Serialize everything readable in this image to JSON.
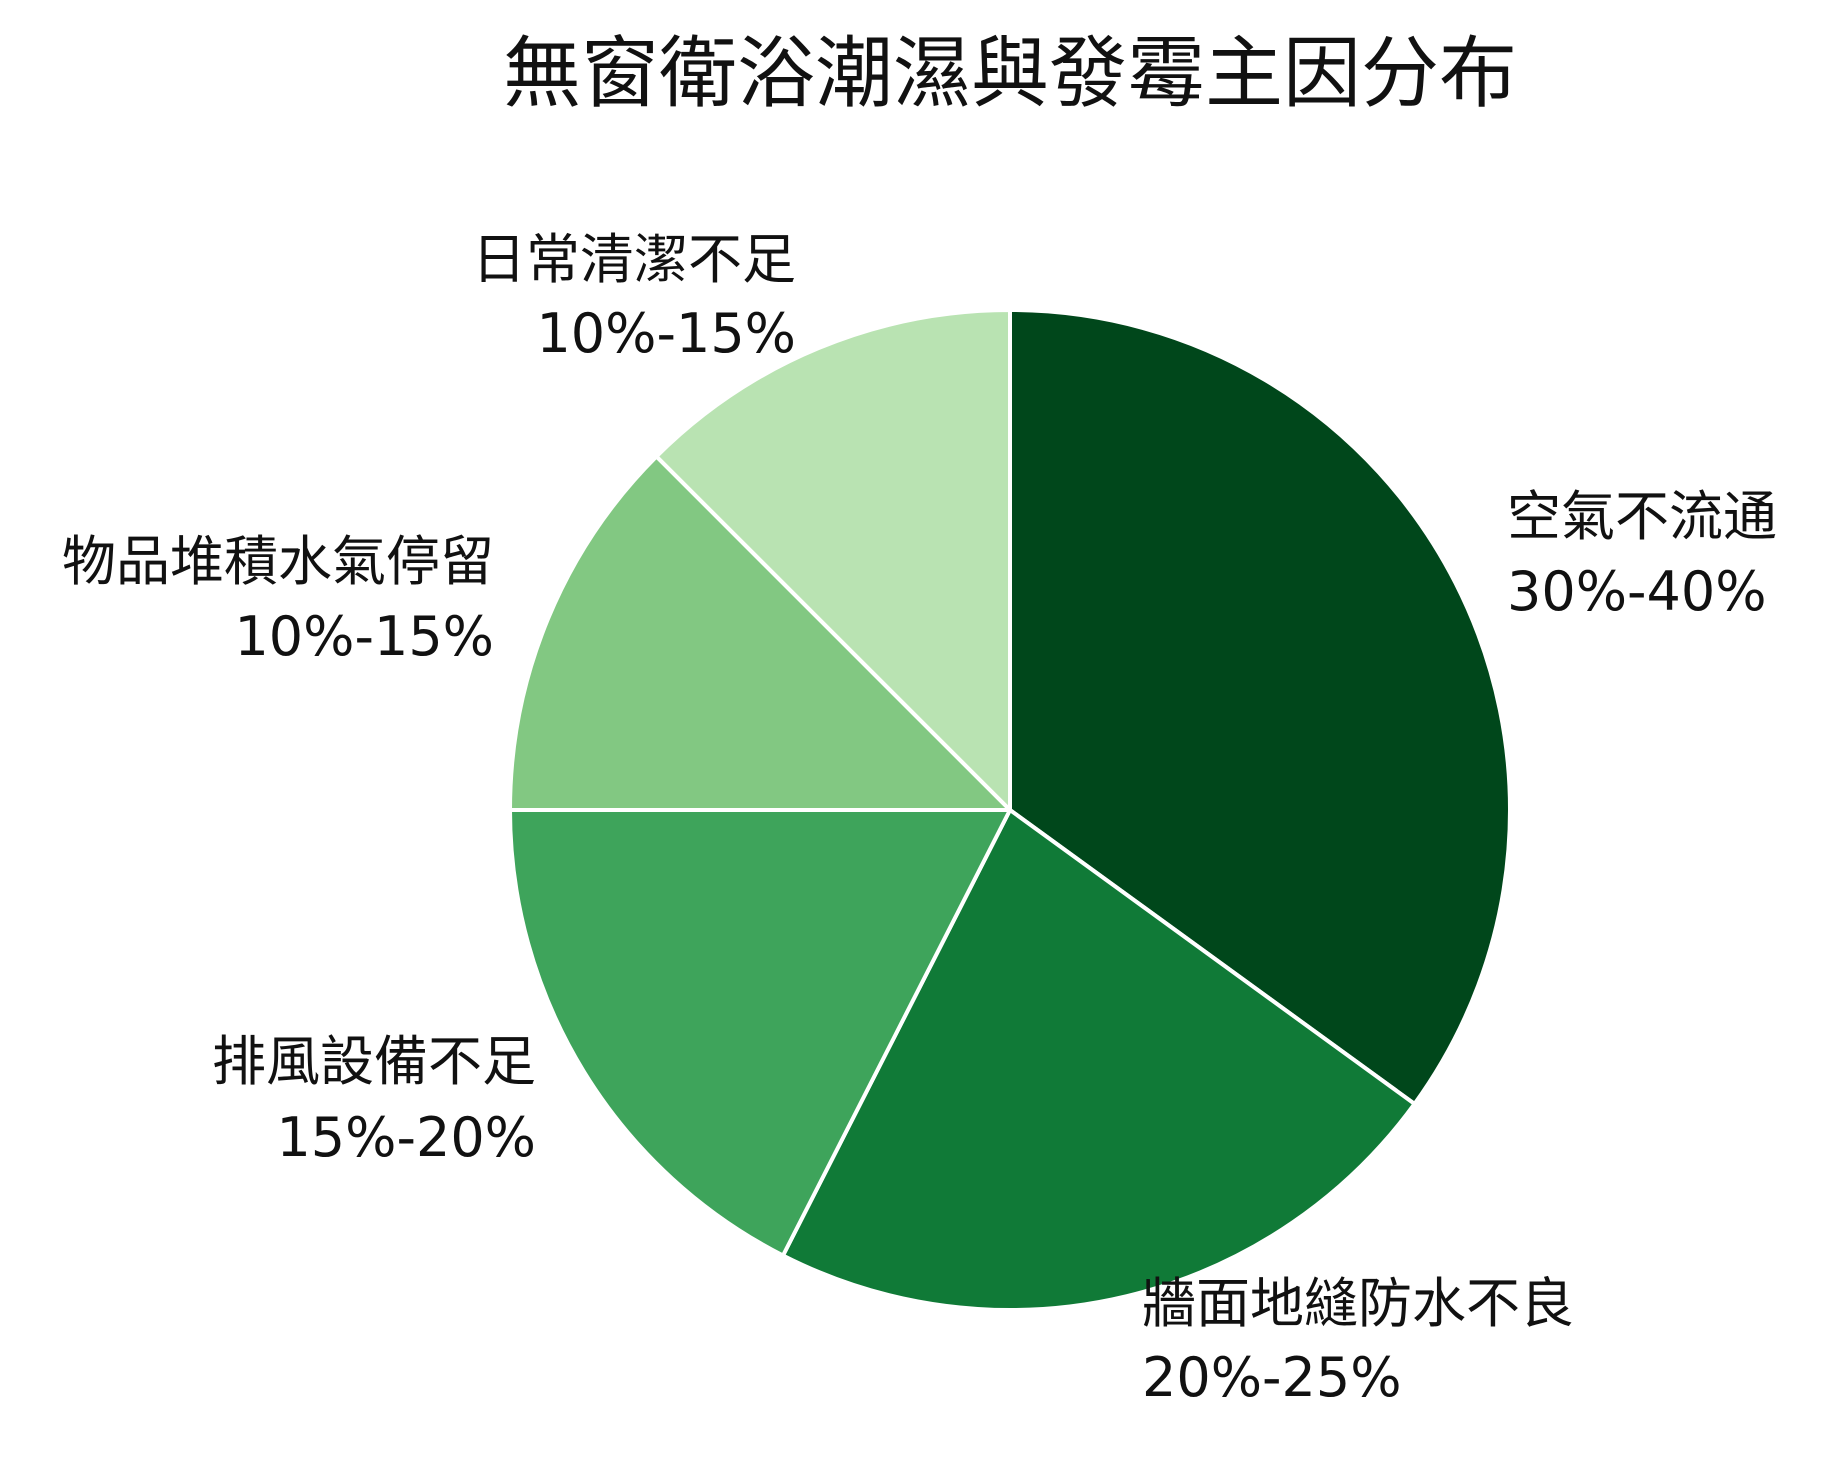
{
  "chart_data": {
    "type": "pie",
    "title": "無窗衛浴潮濕與發霉主因分布",
    "start_angle_deg": 0,
    "direction": "clockwise",
    "slices": [
      {
        "label": "空氣不流通",
        "range_text": "30%-40%",
        "value": 35,
        "color": "#00471b"
      },
      {
        "label": "牆面地縫防水不良",
        "range_text": "20%-25%",
        "value": 22.5,
        "color": "#107a37"
      },
      {
        "label": "排風設備不足",
        "range_text": "15%-20%",
        "value": 17.5,
        "color": "#3ea45b"
      },
      {
        "label": "物品堆積水氣停留",
        "range_text": "10%-15%",
        "value": 12.5,
        "color": "#82c882"
      },
      {
        "label": "日常清潔不足",
        "range_text": "10%-15%",
        "value": 12.5,
        "color": "#b9e3b2"
      }
    ],
    "slice_border_color": "#ffffff"
  }
}
